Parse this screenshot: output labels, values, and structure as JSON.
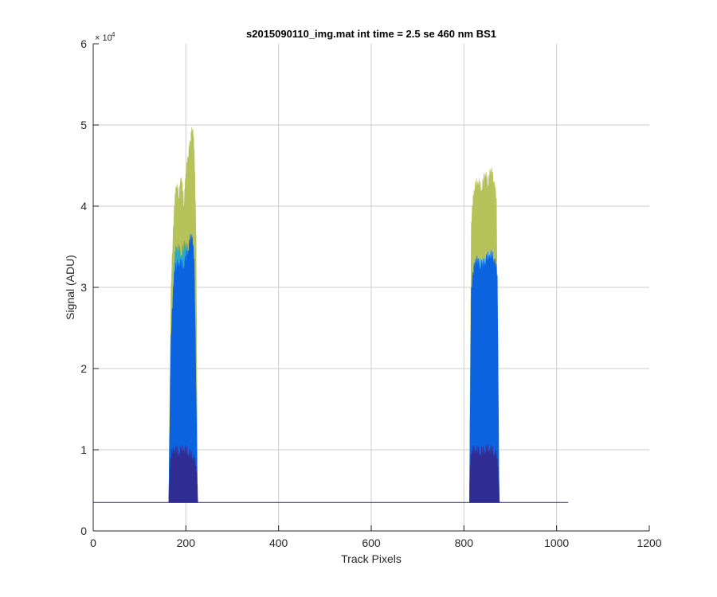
{
  "chart_data": {
    "type": "area",
    "title": "s2015090110_img.mat int time = 2.5 se  460 nm BS1",
    "xlabel": "Track Pixels",
    "ylabel": "Signal (ADU)",
    "xlim": [
      0,
      1200
    ],
    "ylim": [
      0,
      60000
    ],
    "y_exponent": "× 10",
    "y_exponent_power": "4",
    "grid": true,
    "xticks": [
      0,
      200,
      400,
      600,
      800,
      1000,
      1200
    ],
    "xtick_labels": [
      "0",
      "200",
      "400",
      "600",
      "800",
      "1000",
      "1200"
    ],
    "yticks": [
      0,
      10000,
      20000,
      30000,
      40000,
      50000,
      60000
    ],
    "ytick_labels": [
      "0",
      "1",
      "2",
      "3",
      "4",
      "5",
      "6"
    ],
    "baseline": {
      "x": [
        0,
        1025
      ],
      "y": 3500
    },
    "peaks": [
      {
        "x_start": 163,
        "x_end": 225,
        "layers": [
          {
            "color": "#b6c25a",
            "x": [
              163,
              168,
              175,
              180,
              185,
              190,
              196,
              200,
              205,
              210,
              214,
              218,
              222,
              225
            ],
            "y": [
              3500,
              30000,
              40000,
              42500,
              41000,
              43500,
              40000,
              44000,
              46000,
              48000,
              49500,
              47000,
              36000,
              3500
            ]
          },
          {
            "color": "#2aabc2",
            "x": [
              163,
              168,
              175,
              180,
              190,
              200,
              210,
              218,
              225
            ],
            "y": [
              3500,
              22000,
              33000,
              35000,
              34000,
              35500,
              33000,
              31000,
              3500
            ]
          },
          {
            "color": "#0b63e0",
            "x": [
              163,
              168,
              175,
              185,
              195,
              205,
              212,
              218,
              225
            ],
            "y": [
              3500,
              24000,
              32000,
              33000,
              32500,
              34500,
              36500,
              33500,
              3500
            ]
          },
          {
            "color": "#2f2d94",
            "x": [
              163,
              167,
              175,
              185,
              195,
              205,
              215,
              222,
              226
            ],
            "y": [
              3500,
              9000,
              10000,
              9500,
              10000,
              9500,
              9000,
              8000,
              3500
            ]
          }
        ]
      },
      {
        "x_start": 812,
        "x_end": 876,
        "layers": [
          {
            "color": "#b6c25a",
            "x": [
              812,
              816,
              822,
              830,
              838,
              846,
              852,
              858,
              864,
              870,
              876
            ],
            "y": [
              3500,
              38000,
              42000,
              43000,
              42000,
              44000,
              42500,
              44500,
              43000,
              41000,
              3500
            ]
          },
          {
            "color": "#2aabc2",
            "x": [
              812,
              816,
              825,
              840,
              855,
              868,
              876
            ],
            "y": [
              3500,
              30000,
              32500,
              33000,
              32500,
              32000,
              3500
            ]
          },
          {
            "color": "#0b63e0",
            "x": [
              812,
              816,
              825,
              835,
              845,
              855,
              865,
              872,
              876
            ],
            "y": [
              3500,
              30000,
              33500,
              32500,
              33000,
              34000,
              33500,
              31500,
              3500
            ]
          },
          {
            "color": "#2f2d94",
            "x": [
              812,
              815,
              825,
              835,
              845,
              855,
              865,
              872,
              877
            ],
            "y": [
              3500,
              9500,
              10000,
              9500,
              9800,
              10000,
              9500,
              9000,
              3500
            ]
          }
        ]
      }
    ]
  }
}
